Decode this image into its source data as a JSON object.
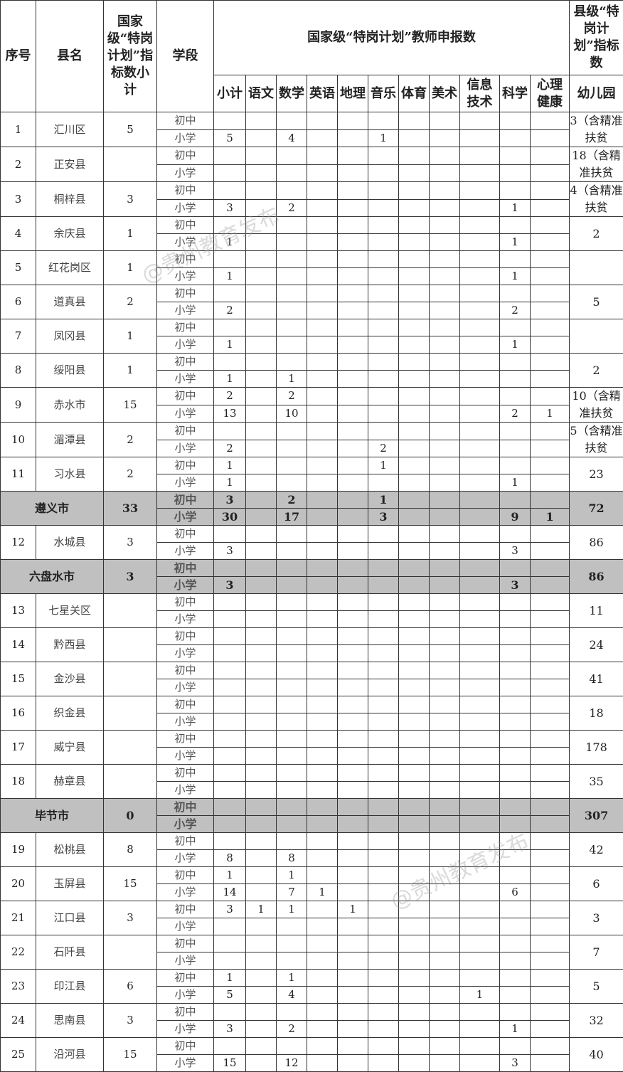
{
  "header": {
    "seq": "序号",
    "county": "县名",
    "quota": "国家级“特岗计划”指标数小计",
    "stage": "学段",
    "group": "国家级“特岗计划”教师申报数",
    "county_level": "县级“特岗计划”指标数",
    "subjects": [
      "小计",
      "语文",
      "数学",
      "英语",
      "地理",
      "音乐",
      "体育",
      "美术",
      "信息技术",
      "科学",
      "心理健康"
    ],
    "kindergarten": "幼儿园"
  },
  "stages": [
    "初中",
    "小学"
  ],
  "rows": [
    {
      "seq": "1",
      "name": "汇川区",
      "quota": "5",
      "junior": [],
      "primary": [
        "5",
        "",
        "4",
        "",
        "",
        "1"
      ],
      "kg": "3（含精准扶贫"
    },
    {
      "seq": "2",
      "name": "正安县",
      "quota": "",
      "junior": [],
      "primary": [],
      "kg": "18（含精准扶贫"
    },
    {
      "seq": "3",
      "name": "桐梓县",
      "quota": "3",
      "junior": [],
      "primary": [
        "3",
        "",
        "2",
        "",
        "",
        "",
        "",
        "",
        "",
        "1"
      ],
      "kg": "4（含精准扶贫"
    },
    {
      "seq": "4",
      "name": "余庆县",
      "quota": "1",
      "junior": [],
      "primary": [
        "1",
        "",
        "",
        "",
        "",
        "",
        "",
        "",
        "",
        "1"
      ],
      "kg": "2"
    },
    {
      "seq": "5",
      "name": "红花岗区",
      "quota": "1",
      "junior": [],
      "primary": [
        "1",
        "",
        "",
        "",
        "",
        "",
        "",
        "",
        "",
        "1"
      ],
      "kg": ""
    },
    {
      "seq": "6",
      "name": "道真县",
      "quota": "2",
      "junior": [],
      "primary": [
        "2",
        "",
        "",
        "",
        "",
        "",
        "",
        "",
        "",
        "2"
      ],
      "kg": "5"
    },
    {
      "seq": "7",
      "name": "凤冈县",
      "quota": "1",
      "junior": [],
      "primary": [
        "1",
        "",
        "",
        "",
        "",
        "",
        "",
        "",
        "",
        "1"
      ],
      "kg": ""
    },
    {
      "seq": "8",
      "name": "绥阳县",
      "quota": "1",
      "junior": [],
      "primary": [
        "1",
        "",
        "1"
      ],
      "kg": "2"
    },
    {
      "seq": "9",
      "name": "赤水市",
      "quota": "15",
      "junior": [
        "2",
        "",
        "2"
      ],
      "primary": [
        "13",
        "",
        "10",
        "",
        "",
        "",
        "",
        "",
        "",
        "2",
        "1"
      ],
      "kg": "10（含精准扶贫"
    },
    {
      "seq": "10",
      "name": "湄潭县",
      "quota": "2",
      "junior": [],
      "primary": [
        "2",
        "",
        "",
        "",
        "",
        "2"
      ],
      "kg": "5（含精准扶贫"
    },
    {
      "seq": "11",
      "name": "习水县",
      "quota": "2",
      "junior": [
        "1",
        "",
        "",
        "",
        "",
        "1"
      ],
      "primary": [
        "1",
        "",
        "",
        "",
        "",
        "",
        "",
        "",
        "",
        "1"
      ],
      "kg": "23"
    },
    {
      "subtotal": true,
      "name": "遵义市",
      "quota": "33",
      "junior": [
        "3",
        "",
        "2",
        "",
        "",
        "1"
      ],
      "primary": [
        "30",
        "",
        "17",
        "",
        "",
        "3",
        "",
        "",
        "",
        "9",
        "1"
      ],
      "kg": "72"
    },
    {
      "seq": "12",
      "name": "水城县",
      "quota": "3",
      "junior": [],
      "primary": [
        "3",
        "",
        "",
        "",
        "",
        "",
        "",
        "",
        "",
        "3"
      ],
      "kg": "86"
    },
    {
      "subtotal": true,
      "name": "六盘水市",
      "quota": "3",
      "junior": [],
      "primary": [
        "3",
        "",
        "",
        "",
        "",
        "",
        "",
        "",
        "",
        "3"
      ],
      "kg": "86"
    },
    {
      "seq": "13",
      "name": "七星关区",
      "quota": "",
      "junior": [],
      "primary": [],
      "kg": "11"
    },
    {
      "seq": "14",
      "name": "黔西县",
      "quota": "",
      "junior": [],
      "primary": [],
      "kg": "24"
    },
    {
      "seq": "15",
      "name": "金沙县",
      "quota": "",
      "junior": [],
      "primary": [],
      "kg": "41"
    },
    {
      "seq": "16",
      "name": "织金县",
      "quota": "",
      "junior": [],
      "primary": [],
      "kg": "18"
    },
    {
      "seq": "17",
      "name": "威宁县",
      "quota": "",
      "junior": [],
      "primary": [],
      "kg": "178"
    },
    {
      "seq": "18",
      "name": "赫章县",
      "quota": "",
      "junior": [],
      "primary": [],
      "kg": "35"
    },
    {
      "subtotal": true,
      "name": "毕节市",
      "quota": "0",
      "junior": [],
      "primary": [],
      "kg": "307"
    },
    {
      "seq": "19",
      "name": "松桃县",
      "quota": "8",
      "junior": [],
      "primary": [
        "8",
        "",
        "8"
      ],
      "kg": "42"
    },
    {
      "seq": "20",
      "name": "玉屏县",
      "quota": "15",
      "junior": [
        "1",
        "",
        "1"
      ],
      "primary": [
        "14",
        "",
        "7",
        "1",
        "",
        "",
        "",
        "",
        "",
        "6"
      ],
      "kg": "6"
    },
    {
      "seq": "21",
      "name": "江口县",
      "quota": "3",
      "junior": [
        "3",
        "1",
        "1",
        "",
        "1"
      ],
      "primary": [],
      "kg": "3"
    },
    {
      "seq": "22",
      "name": "石阡县",
      "quota": "",
      "junior": [],
      "primary": [],
      "kg": "7"
    },
    {
      "seq": "23",
      "name": "印江县",
      "quota": "6",
      "junior": [
        "1",
        "",
        "1"
      ],
      "primary": [
        "5",
        "",
        "4",
        "",
        "",
        "",
        "",
        "",
        "1"
      ],
      "kg": "5"
    },
    {
      "seq": "24",
      "name": "思南县",
      "quota": "3",
      "junior": [],
      "primary": [
        "3",
        "",
        "2",
        "",
        "",
        "",
        "",
        "",
        "",
        "1"
      ],
      "kg": "32"
    },
    {
      "seq": "25",
      "name": "沿河县",
      "quota": "15",
      "junior": [],
      "primary": [
        "15",
        "",
        "12",
        "",
        "",
        "",
        "",
        "",
        "",
        "3"
      ],
      "kg": "40"
    }
  ],
  "watermarks": [
    "@贵州教育发布",
    "@贵州教育发布"
  ]
}
